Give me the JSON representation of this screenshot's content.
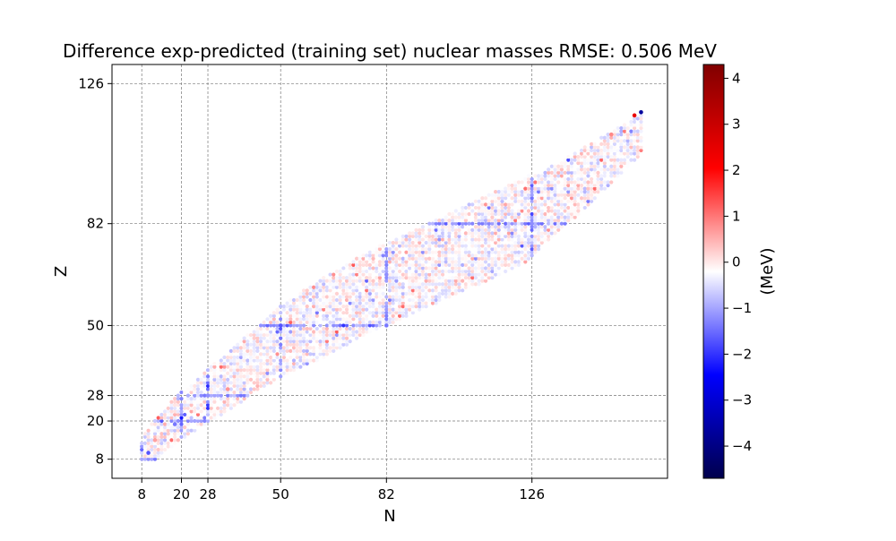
{
  "chart_data": {
    "type": "scatter",
    "title": "Difference exp-predicted (training set) nuclear masses  RMSE: 0.506 MeV",
    "xlabel": "N",
    "ylabel": "Z",
    "xlim": [
      -1,
      167
    ],
    "ylim": [
      2,
      132
    ],
    "xticks": [
      8,
      20,
      28,
      50,
      82,
      126
    ],
    "yticks": [
      8,
      20,
      28,
      50,
      82,
      126
    ],
    "grid": true,
    "grid_lines_x": [
      8,
      20,
      28,
      50,
      82,
      126
    ],
    "grid_lines_y": [
      8,
      20,
      28,
      50,
      82,
      126
    ],
    "colorbar": {
      "label": "(MeV)",
      "range": [
        -4.7,
        4.3
      ],
      "ticks": [
        4,
        3,
        2,
        1,
        0,
        -1,
        -2,
        -3,
        -4
      ],
      "tick_labels": [
        "4",
        "3",
        "2",
        "1",
        "0",
        "−1",
        "−2",
        "−3",
        "−4"
      ],
      "colormap": "seismic",
      "color_low": "#00004c",
      "color_mid": "#ffffff",
      "color_high": "#800000"
    },
    "series": [
      {
        "values_description_unused": "",
        "sample_points": [
          {
            "x": 10,
            "y": 10,
            "v": -1.5
          },
          {
            "x": 12,
            "y": 14,
            "v": 0.8
          },
          {
            "x": 18,
            "y": 19,
            "v": -1.2
          },
          {
            "x": 28,
            "y": 28,
            "v": -1.0
          },
          {
            "x": 34,
            "y": 30,
            "v": 0.9
          },
          {
            "x": 50,
            "y": 50,
            "v": -1.5
          },
          {
            "x": 82,
            "y": 50,
            "v": -1.2
          },
          {
            "x": 82,
            "y": 66,
            "v": -1.0
          },
          {
            "x": 126,
            "y": 82,
            "v": -1.0
          },
          {
            "x": 150,
            "y": 110,
            "v": 1.0
          },
          {
            "x": 157,
            "y": 116,
            "v": 2.5
          },
          {
            "x": 159,
            "y": 117,
            "v": -3.5
          }
        ]
      }
    ]
  }
}
